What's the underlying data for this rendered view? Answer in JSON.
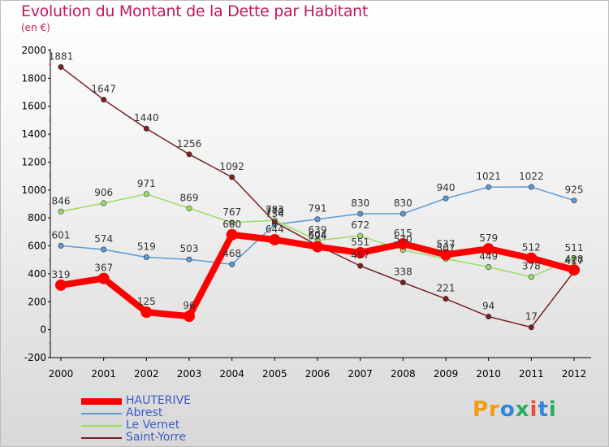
{
  "chart_data": {
    "type": "line",
    "title": "Evolution du Montant de la Dette par Habitant",
    "subtitle": "(en €)",
    "x": [
      "2000",
      "2001",
      "2002",
      "2003",
      "2004",
      "2005",
      "2006",
      "2007",
      "2008",
      "2009",
      "2010",
      "2011",
      "2012"
    ],
    "ylim": [
      -200,
      2000
    ],
    "yticks": [
      "-200",
      "0",
      "200",
      "400",
      "600",
      "800",
      "1000",
      "1200",
      "1400",
      "1600",
      "1800",
      "2000"
    ],
    "grid": false,
    "legend_position": "bottom-left",
    "series": [
      {
        "name": "HAUTERIVE",
        "color": "#ff0000",
        "values": [
          319,
          367,
          125,
          96,
          680,
          644,
          594,
          551,
          615,
          537,
          579,
          512,
          428
        ]
      },
      {
        "name": "Abrest",
        "color": "#5b9bd5",
        "values": [
          601,
          574,
          519,
          503,
          468,
          754,
          791,
          830,
          830,
          940,
          1021,
          1022,
          925
        ]
      },
      {
        "name": "Le Vernet",
        "color": "#99dd66",
        "values": [
          846,
          906,
          971,
          869,
          767,
          783,
          639,
          672,
          570,
          507,
          449,
          378,
          511
        ]
      },
      {
        "name": "Saint-Yorre",
        "color": "#7a2020",
        "values": [
          1881,
          1647,
          1440,
          1256,
          1092,
          770,
          604,
          457,
          338,
          221,
          94,
          17,
          417
        ]
      }
    ]
  },
  "brand": {
    "p1": "Pr",
    "p2": "o",
    "p3": "x",
    "p4": "i",
    "p5": "t",
    "p6": "i"
  }
}
